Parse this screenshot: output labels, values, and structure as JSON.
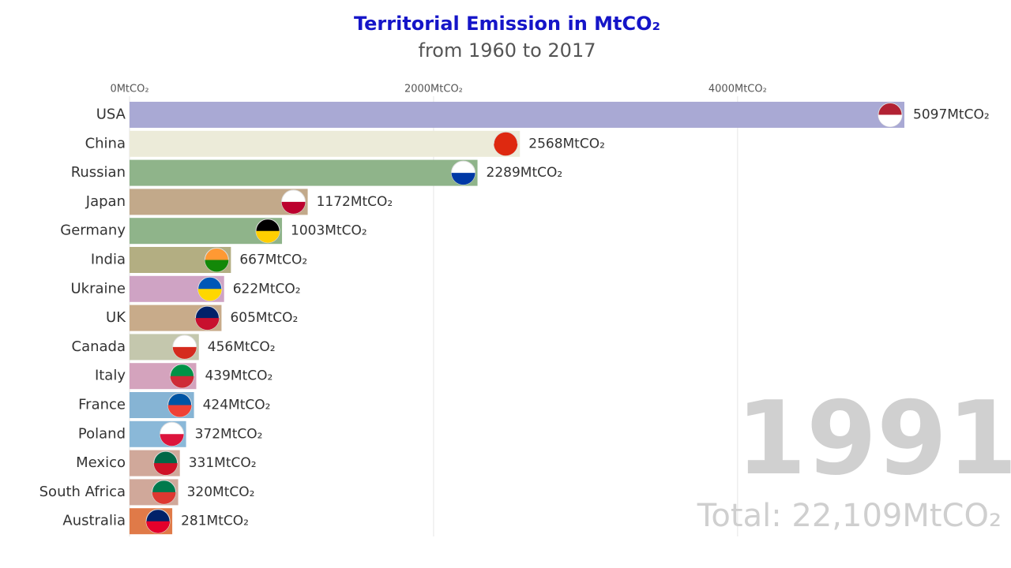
{
  "chart_data": {
    "type": "hbar",
    "title": "Territorial Emission in MtCO₂",
    "subtitle": "from 1960 to 2017",
    "year": "1991",
    "total": "Total: 22,109MtCO₂",
    "categories": [
      "USA",
      "China",
      "Russian",
      "Japan",
      "Germany",
      "India",
      "Ukraine",
      "UK",
      "Canada",
      "Italy",
      "France",
      "Poland",
      "Mexico",
      "South Africa",
      "Australia"
    ],
    "values": [
      5097,
      2568,
      2289,
      1172,
      1003,
      667,
      622,
      605,
      456,
      439,
      424,
      372,
      331,
      320,
      281
    ],
    "value_labels": [
      "5097MtCO₂",
      "2568MtCO₂",
      "2289MtCO₂",
      "1172MtCO₂",
      "1003MtCO₂",
      "667MtCO₂",
      "622MtCO₂",
      "605MtCO₂",
      "456MtCO₂",
      "439MtCO₂",
      "424MtCO₂",
      "372MtCO₂",
      "331MtCO₂",
      "320MtCO₂",
      "281MtCO₂"
    ],
    "colors": [
      "#a9a9d4",
      "#ecebd9",
      "#8fb48a",
      "#c2a98a",
      "#8fb48a",
      "#b3ae82",
      "#cfa3c4",
      "#c8ab8a",
      "#c4c7ad",
      "#d4a3bd",
      "#86b4d4",
      "#8ab8d8",
      "#d0a89a",
      "#d0a89a",
      "#e07a48"
    ],
    "xlim": [
      0,
      5097
    ],
    "xticks": [
      {
        "value": 0,
        "label": "0MtCO₂"
      },
      {
        "value": 2000,
        "label": "2000MtCO₂"
      },
      {
        "value": 4000,
        "label": "4000MtCO₂"
      }
    ],
    "grid": true
  }
}
